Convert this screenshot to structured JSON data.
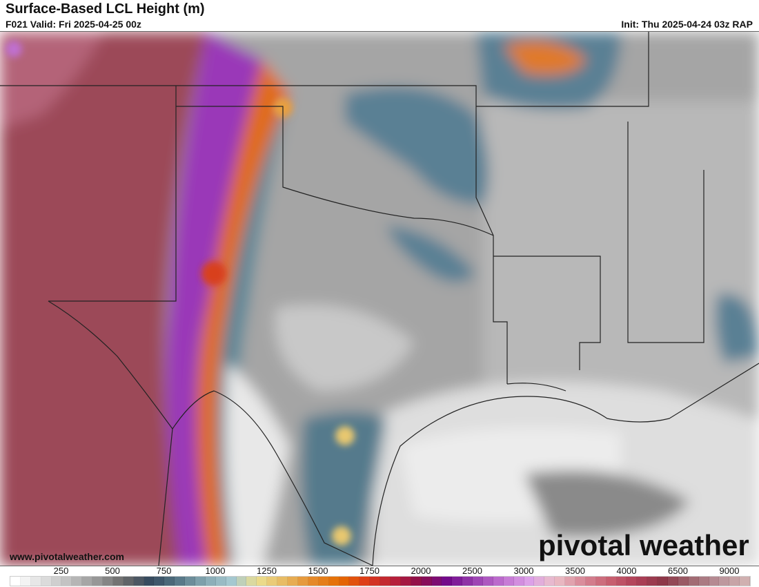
{
  "header": {
    "title": "Surface-Based LCL Height (m)",
    "valid": "F021 Valid: Fri 2025-04-25 00z",
    "init": "Init: Thu 2025-04-24 03z RAP"
  },
  "footer": {
    "website": "www.pivotalweather.com",
    "logo_text": "pivotal weather"
  },
  "legend": {
    "labels": [
      "250",
      "500",
      "750",
      "1000",
      "1250",
      "1500",
      "1750",
      "2000",
      "2500",
      "3000",
      "3500",
      "4000",
      "6500",
      "9000"
    ],
    "swatch_count": 72,
    "color_stops": [
      "#ffffff",
      "#e0e0e0",
      "#c0c0c0",
      "#999999",
      "#6a6a6a",
      "#34495e",
      "#557585",
      "#86a8b2",
      "#a5c8d0",
      "#ecdf90",
      "#e8b860",
      "#e58a2a",
      "#e56c00",
      "#dd3c1a",
      "#b8203a",
      "#8c0e4c",
      "#720a8c",
      "#9a40b0",
      "#c070d0",
      "#dca0e8",
      "#ecc0c8",
      "#d88898",
      "#c86070",
      "#b04058",
      "#8c3848",
      "#a06870",
      "#b89098",
      "#d0b0b0"
    ]
  },
  "map": {
    "colors": {
      "dry_maroon": "#9c4a58",
      "purple": "#a040c0",
      "orange": "#e08020",
      "blue": "#4e7488",
      "gray": "#9a9a9a",
      "light": "#e6e6e6"
    }
  }
}
